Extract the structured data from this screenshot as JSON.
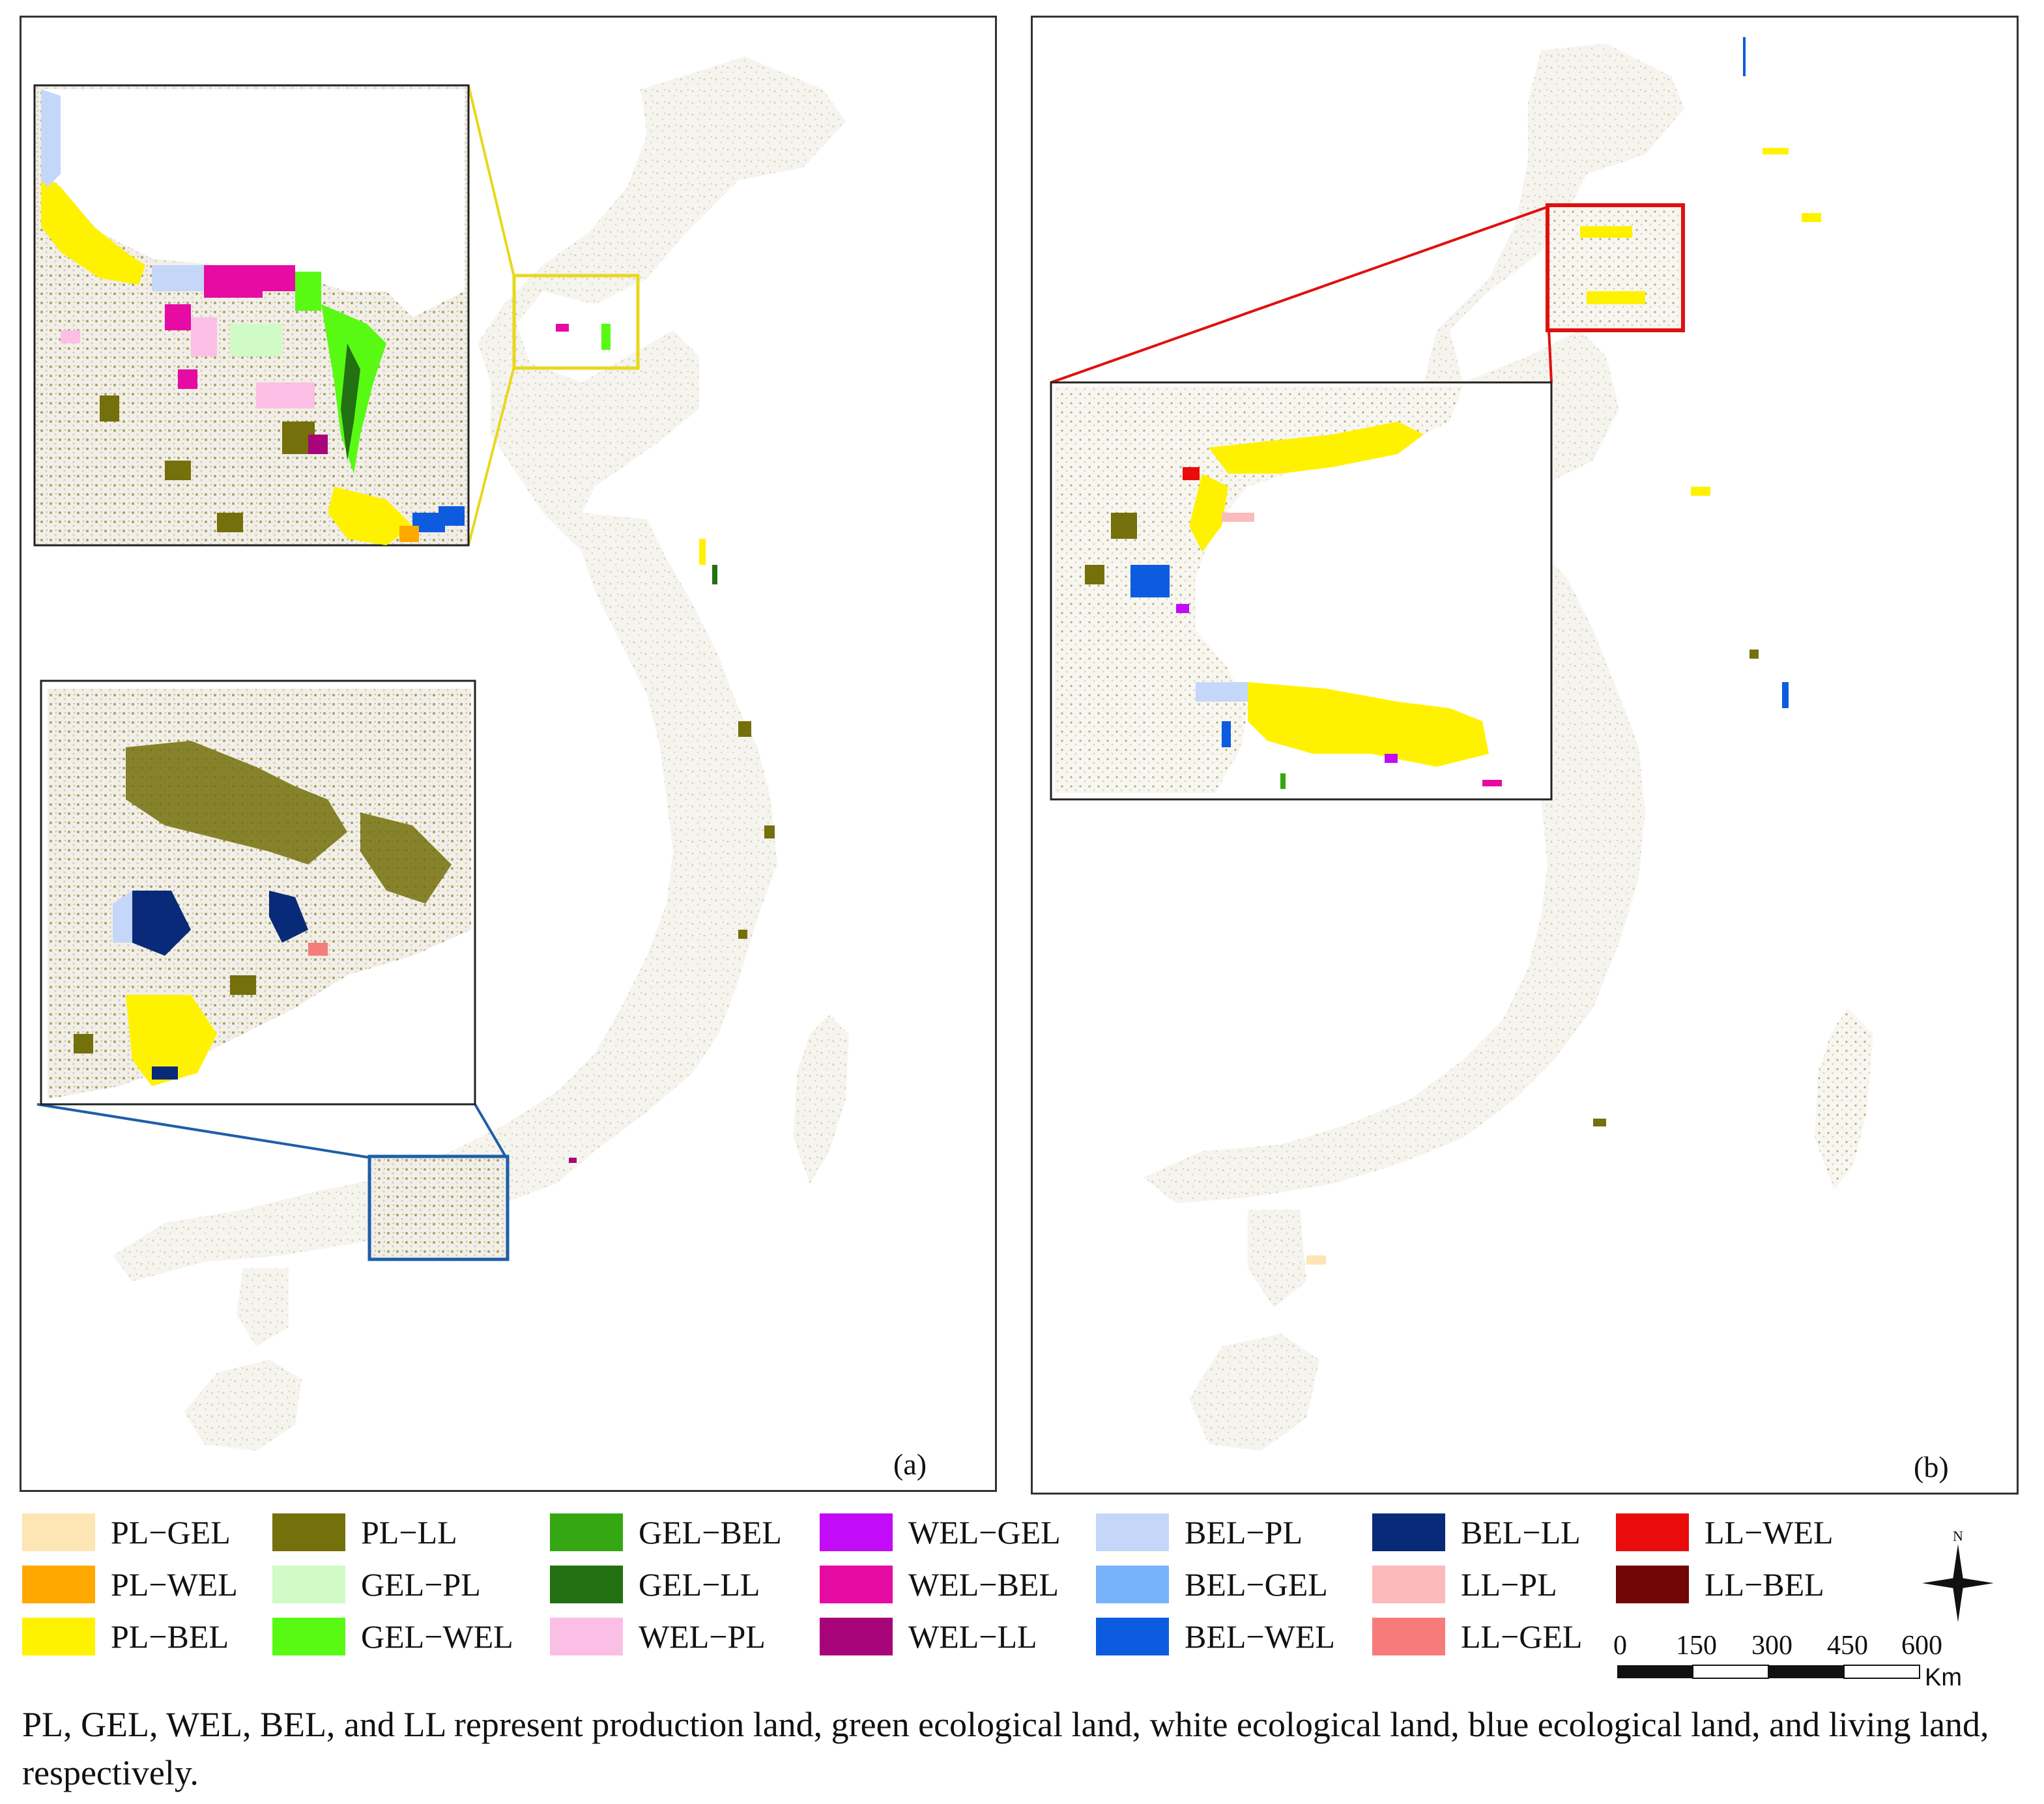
{
  "panels": [
    {
      "label": "(a)",
      "inset_frames": [
        {
          "color": "#e8d81c"
        },
        {
          "color": "#1f5ea8"
        }
      ]
    },
    {
      "label": "(b)",
      "inset_frames": [
        {
          "color": "#e01010"
        }
      ]
    }
  ],
  "legend": {
    "items": [
      {
        "label": "PL−GEL",
        "color": "#fde5b4"
      },
      {
        "label": "PL−WEL",
        "color": "#ffa800"
      },
      {
        "label": "PL−BEL",
        "color": "#fff200"
      },
      {
        "label": "PL−LL",
        "color": "#74700b"
      },
      {
        "label": "GEL−PL",
        "color": "#d0fbc6"
      },
      {
        "label": "GEL−WEL",
        "color": "#58fa14"
      },
      {
        "label": "GEL−BEL",
        "color": "#34a713"
      },
      {
        "label": "GEL−LL",
        "color": "#237112"
      },
      {
        "label": "WEL−PL",
        "color": "#fbbfe5"
      },
      {
        "label": "WEL−GEL",
        "color": "#c20bf7"
      },
      {
        "label": "WEL−BEL",
        "color": "#e60ba2"
      },
      {
        "label": "WEL−LL",
        "color": "#a80479"
      },
      {
        "label": "BEL−PL",
        "color": "#c5d7f9"
      },
      {
        "label": "BEL−GEL",
        "color": "#77b3fb"
      },
      {
        "label": "BEL−WEL",
        "color": "#0d5ce0"
      },
      {
        "label": "BEL−LL",
        "color": "#082a78"
      },
      {
        "label": "LL−PL",
        "color": "#fbbbbb"
      },
      {
        "label": "LL−GEL",
        "color": "#f67c7c"
      },
      {
        "label": "LL−WEL",
        "color": "#ea0b0b"
      },
      {
        "label": "LL−BEL",
        "color": "#720606"
      }
    ]
  },
  "north_arrow": {
    "label": "N"
  },
  "scale_bar": {
    "ticks": [
      "0",
      "150",
      "300",
      "450",
      "600"
    ],
    "unit": "Km"
  },
  "caption": "PL, GEL, WEL, BEL, and LL represent production land, green ecological land, white ecological land, blue ecological land, and living land, respectively."
}
